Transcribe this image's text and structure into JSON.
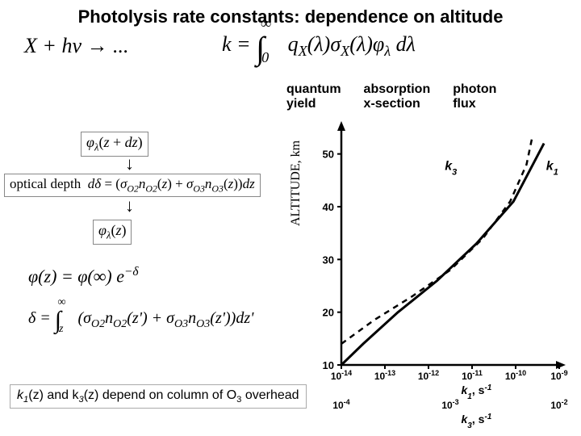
{
  "title": "Photolysis rate constants: dependence on altitude",
  "main_eq_left": "X + hν → ...",
  "main_eq_right_prefix": "k = ",
  "main_eq_int_lo": "0",
  "main_eq_int_hi": "∞",
  "main_eq_integrand": "q_X(λ) σ_X(λ) φ_λ dλ",
  "labels": {
    "q": "quantum\nyield",
    "sigma": "absorption\nx-section",
    "phi": "photon\nflux"
  },
  "left_col": {
    "phi_top": "φ_λ(z + dz)",
    "optical_depth": "optical depth  dδ = (σ_{O2} n_{O2}(z) + σ_{O3} n_{O3}(z)) dz",
    "phi_z": "φ_λ(z)",
    "phi_exp": "φ(z) = φ(∞) e^{−δ}",
    "delta_int": "δ = ∫_z^∞ (σ_{O2} n_{O2}(z') + σ_{O3} n_{O3}(z')) dz'"
  },
  "footnote_pre": "k",
  "footnote_mid": "(z) and k",
  "footnote_post": "(z) depend on column of O",
  "footnote_tail": " overhead",
  "sub1": "1",
  "sub3": "3",
  "chart": {
    "type": "line",
    "background_color": "#ffffff",
    "axis_color": "#000000",
    "tick_fontsize": 13,
    "label_fontsize": 14,
    "line_width_k1": 3,
    "line_width_k3": 2.5,
    "k3_dash": "7,6",
    "ylabel": "ALTITUDE, km",
    "yticks": [
      10,
      20,
      30,
      40,
      50
    ],
    "ylim": [
      10,
      55
    ],
    "x1_label": "k₁, s⁻¹",
    "x1_ticks_exp": [
      -14,
      -13,
      -12,
      -11,
      -10,
      -9
    ],
    "x3_label": "k₃, s⁻¹",
    "x3_ticks_exp": [
      -4,
      -3,
      -2
    ],
    "curve_labels": {
      "k1": "k₁",
      "k3": "k₃"
    },
    "k1_points": [
      {
        "logk": -14,
        "alt": 10
      },
      {
        "logk": -13.5,
        "alt": 14
      },
      {
        "logk": -12.7,
        "alt": 20
      },
      {
        "logk": -11.8,
        "alt": 26
      },
      {
        "logk": -10.9,
        "alt": 33
      },
      {
        "logk": -10.05,
        "alt": 41
      },
      {
        "logk": -9.35,
        "alt": 52
      }
    ],
    "k3_points": [
      {
        "logk": -4,
        "alt": 14
      },
      {
        "logk": -3.7,
        "alt": 18.5
      },
      {
        "logk": -3.35,
        "alt": 23
      },
      {
        "logk": -3.0,
        "alt": 28
      },
      {
        "logk": -2.7,
        "alt": 34
      },
      {
        "logk": -2.45,
        "alt": 41
      },
      {
        "logk": -2.3,
        "alt": 48
      },
      {
        "logk": -2.25,
        "alt": 53
      }
    ]
  }
}
